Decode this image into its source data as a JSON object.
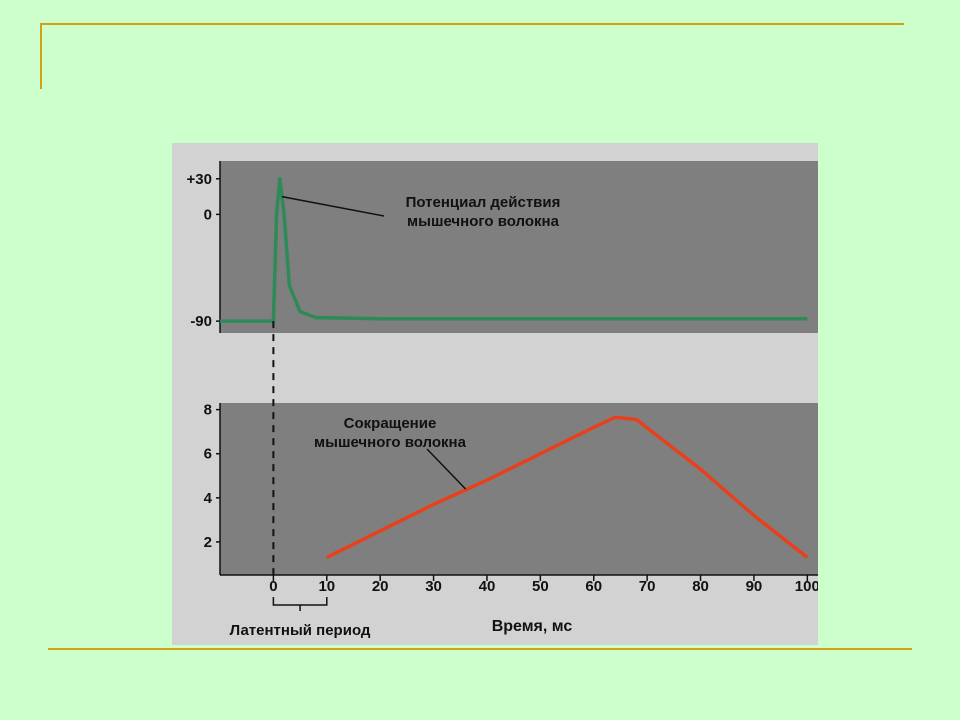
{
  "colors": {
    "slide_background": "#ccffcc",
    "slide_rule": "#d4a017",
    "scan_background": "#d2d2d2",
    "panel_fill": "#7f7f7f",
    "action_potential": "#2e8b57",
    "contraction": "#e8401a"
  },
  "chart_data": [
    {
      "type": "line",
      "series": [
        {
          "name": "Потенциал действия мышечного волокна",
          "x": [
            -10,
            0,
            0.6,
            1.2,
            2.0,
            3.0,
            5.0,
            8.0,
            20,
            60,
            100
          ],
          "y": [
            -90,
            -90,
            0,
            30,
            0,
            -60,
            -82,
            -87,
            -88,
            -88,
            -88
          ]
        }
      ],
      "annotation": {
        "line1": "Потенциал действия",
        "line2": "мышечного волокна"
      },
      "y_tick_labels": [
        "+30",
        "0",
        "-90"
      ],
      "y_ticks": [
        30,
        0,
        -90
      ],
      "ylim": [
        -100,
        45
      ]
    },
    {
      "type": "line",
      "series": [
        {
          "name": "Сокращение мышечного волокна",
          "x": [
            10,
            20,
            30,
            40,
            50,
            60,
            64,
            68,
            72,
            80,
            90,
            100
          ],
          "y": [
            1.3,
            2.5,
            3.7,
            4.8,
            6.0,
            7.2,
            7.65,
            7.55,
            6.8,
            5.3,
            3.2,
            1.3
          ]
        }
      ],
      "annotation": {
        "line1": "Сокращение",
        "line2": "мышечного волокна"
      },
      "y_tick_labels": [
        "8",
        "6",
        "4",
        "2"
      ],
      "y_ticks": [
        8,
        6,
        4,
        2
      ],
      "ylim": [
        0.5,
        8.3
      ],
      "x_tick_labels": [
        "0",
        "10",
        "20",
        "30",
        "40",
        "50",
        "60",
        "70",
        "80",
        "90",
        "100"
      ],
      "x_ticks": [
        0,
        10,
        20,
        30,
        40,
        50,
        60,
        70,
        80,
        90,
        100
      ],
      "xlim": [
        -10,
        102
      ],
      "xlabel": "Время, мс",
      "bracket_label": "Латентный период",
      "bracket_range": [
        0,
        10
      ]
    }
  ]
}
